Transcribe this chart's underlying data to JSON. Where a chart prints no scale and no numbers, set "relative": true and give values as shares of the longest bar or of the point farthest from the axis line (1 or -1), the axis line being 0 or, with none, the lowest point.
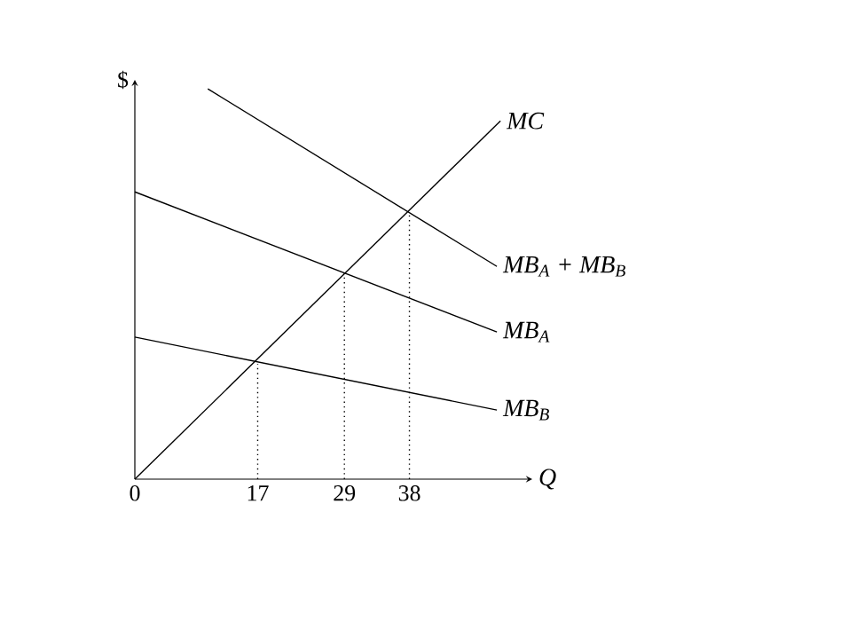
{
  "chart_data": {
    "type": "line",
    "relative": true,
    "xlabel": "Q",
    "ylabel": "$",
    "xlim": [
      0,
      55
    ],
    "xticks": [
      0,
      17,
      29,
      38
    ],
    "series": [
      {
        "name": "MC",
        "color": "#000000",
        "x": [
          0,
          50.6
        ],
        "values": [
          0,
          0.918
        ]
      },
      {
        "name": "MB$_{A}$ + MB$_{B}$",
        "color": "#000000",
        "x": [
          10.1,
          50.1
        ],
        "values": [
          1,
          0.545
        ]
      },
      {
        "name": "MB$_{A}$",
        "color": "#000000",
        "x": [
          0,
          50.1
        ],
        "values": [
          0.736,
          0.377
        ]
      },
      {
        "name": "MB$_{B}$",
        "color": "#000000",
        "x": [
          0,
          50.1
        ],
        "values": [
          0.364,
          0.177
        ]
      },
      {
        "color": "#000000",
        "x": [
          17,
          17
        ],
        "values": [
          0,
          0.295
        ],
        "line_style": "dotted"
      },
      {
        "color": "#000000",
        "x": [
          29,
          29
        ],
        "values": [
          0,
          0.536
        ],
        "line_style": "dotted"
      },
      {
        "color": "#000000",
        "x": [
          38,
          38
        ],
        "values": [
          0,
          0.682
        ],
        "line_style": "dotted"
      }
    ]
  }
}
